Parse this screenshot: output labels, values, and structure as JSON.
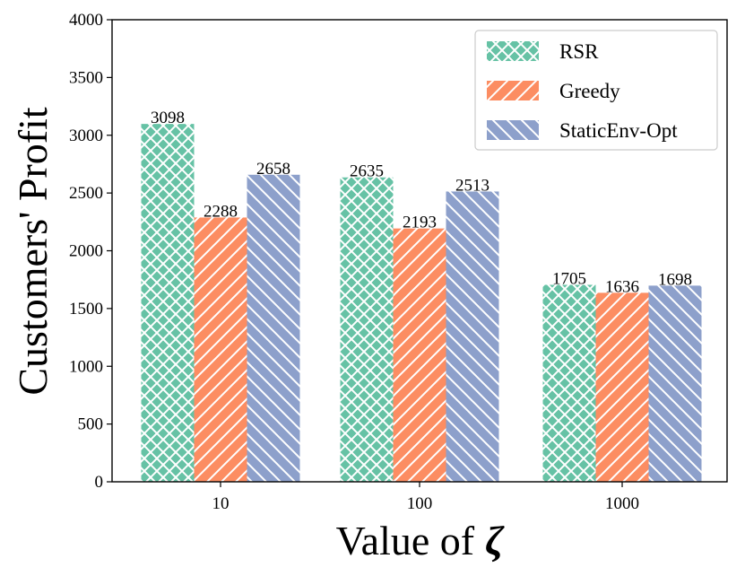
{
  "chart_data": {
    "type": "bar",
    "title": "",
    "xlabel": "Value of",
    "xlabel_symbol": "ζ",
    "ylabel": "Customers' Profit",
    "categories": [
      "10",
      "100",
      "1000"
    ],
    "ylim": [
      0,
      4000
    ],
    "yticks": [
      0,
      500,
      1000,
      1500,
      2000,
      2500,
      3000,
      3500,
      4000
    ],
    "grid": false,
    "legend_position": "top-right",
    "series": [
      {
        "name": "RSR",
        "values": [
          3098,
          2635,
          1705
        ],
        "color": "#66c2a5",
        "hatch": "crosshatch"
      },
      {
        "name": "Greedy",
        "values": [
          2288,
          2193,
          1636
        ],
        "color": "#fc8d62",
        "hatch": "forward-diagonal"
      },
      {
        "name": "StaticEnv-Opt",
        "values": [
          2658,
          2513,
          1698
        ],
        "color": "#8da0cb",
        "hatch": "back-diagonal"
      }
    ]
  }
}
